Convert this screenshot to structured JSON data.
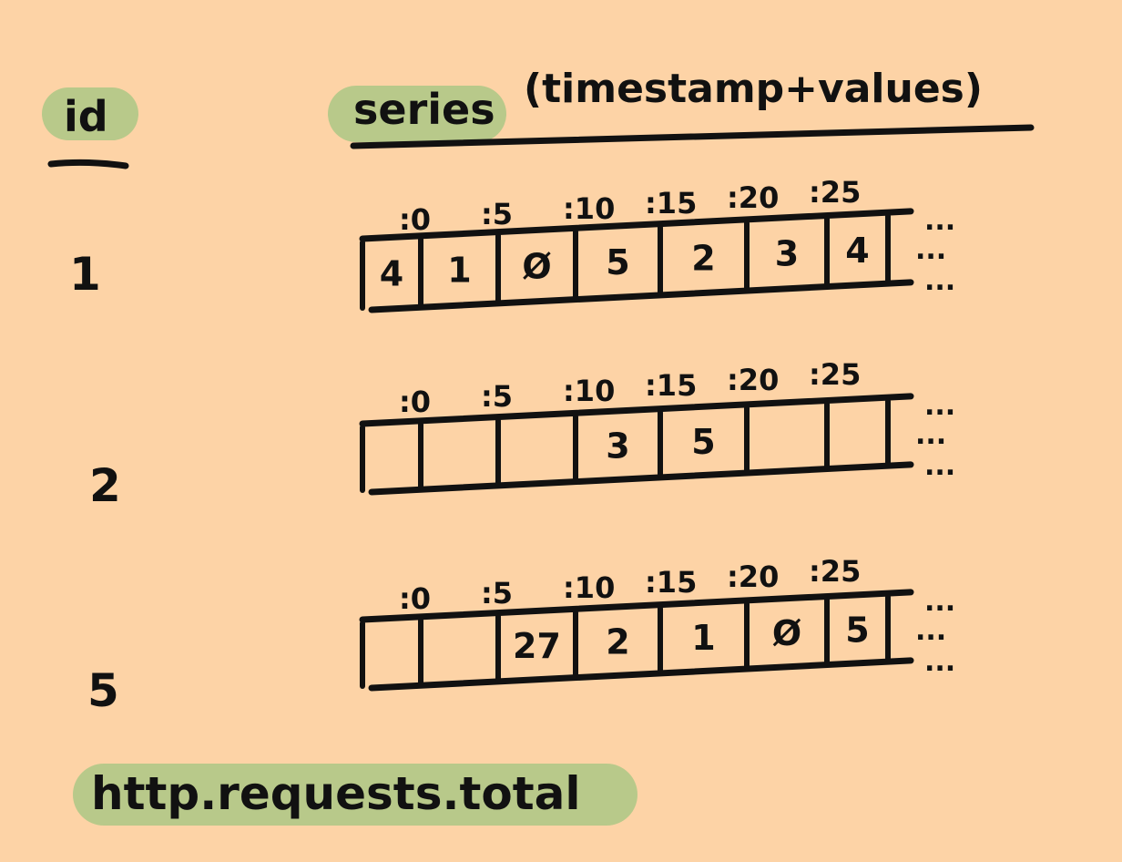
{
  "colors": {
    "background": "#fdd3a6",
    "highlight": "#b8c98a",
    "ink": "#111111"
  },
  "header": {
    "id_label": "id",
    "series_label": "series",
    "series_note": "(timestamp+values)"
  },
  "tick_labels": [
    ":0",
    ":5",
    ":10",
    ":15",
    ":20",
    ":25"
  ],
  "ellipsis": "...",
  "rows": [
    {
      "id": "1",
      "cells": [
        "4",
        "1",
        "Ø",
        "5",
        "2",
        "3",
        "4"
      ]
    },
    {
      "id": "2",
      "cells": [
        "",
        "",
        "",
        "3",
        "5",
        "",
        ""
      ]
    },
    {
      "id": "5",
      "cells": [
        "",
        "",
        "27",
        "2",
        "1",
        "Ø",
        "5"
      ]
    }
  ],
  "metric_name": "http.requests.total"
}
